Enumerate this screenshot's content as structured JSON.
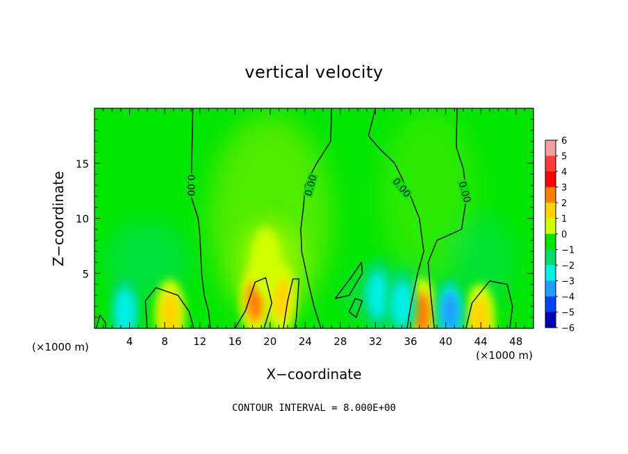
{
  "chart_data": {
    "type": "heatmap",
    "title": "vertical velocity",
    "xlabel": "X−coordinate",
    "ylabel": "Z−coordinate",
    "x_unit": "(×1000 m)",
    "z_unit": "(×1000 m)",
    "xlim": [
      0,
      50
    ],
    "zlim": [
      0,
      20
    ],
    "x_ticks": [
      4,
      8,
      12,
      16,
      20,
      24,
      28,
      32,
      36,
      40,
      44,
      48
    ],
    "z_ticks": [
      5,
      10,
      15
    ],
    "colorbar": {
      "levels": [
        6,
        5,
        4,
        3,
        2,
        1,
        0,
        -1,
        -2,
        -3,
        -4,
        -5,
        -6
      ],
      "colors": [
        "#f4a0a0",
        "#ff3b3b",
        "#ff0000",
        "#ff7f00",
        "#ffd500",
        "#d2ff00",
        "#00e600",
        "#00dd70",
        "#00f0e6",
        "#1ea0ff",
        "#0040ff",
        "#0000b4",
        "#7800b4"
      ]
    },
    "contour_label": "0.00",
    "cells": [
      {
        "x": 8.6,
        "z": 1.3,
        "w": 2
      },
      {
        "x": 18.3,
        "z": 2.5,
        "w": 3
      },
      {
        "x": 21.3,
        "z": 2.7,
        "w": 2
      },
      {
        "x": 19.5,
        "z": 6.0,
        "w": 1.5
      },
      {
        "x": 37.3,
        "z": 1.4,
        "w": 3
      },
      {
        "x": 43.9,
        "z": 0.9,
        "w": 2
      },
      {
        "x": 3.5,
        "z": 1.5,
        "w": -2
      },
      {
        "x": 32.3,
        "z": 3.0,
        "w": -2
      },
      {
        "x": 35.0,
        "z": 2.2,
        "w": -2
      },
      {
        "x": 40.5,
        "z": 1.5,
        "w": -3
      }
    ],
    "footer": "CONTOUR INTERVAL = 8.000E+00"
  }
}
